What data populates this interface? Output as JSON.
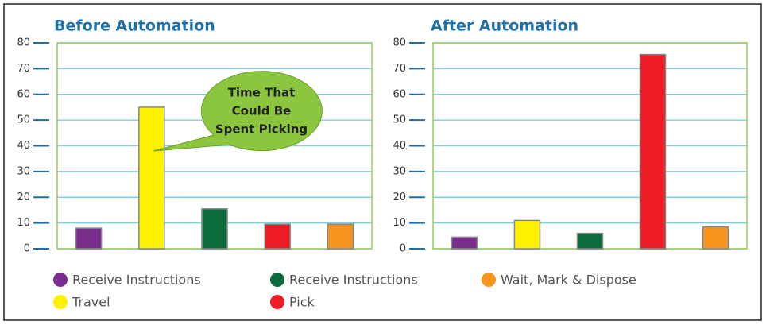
{
  "legend": [
    {
      "name": "Receive Instructions",
      "color": "#7b2d8e"
    },
    {
      "name": "Travel",
      "color": "#fff200"
    },
    {
      "name": "Receive Instructions",
      "color": "#0b6b3a"
    },
    {
      "name": "Pick",
      "color": "#ed1c24"
    },
    {
      "name": "Wait, Mark & Dispose",
      "color": "#f7941d"
    }
  ],
  "chart_data": [
    {
      "type": "bar",
      "title": "Before Automation",
      "values": [
        8,
        55,
        15.5,
        9.5,
        9.5
      ],
      "ylim": [
        0,
        80
      ],
      "yticks": [
        0,
        10,
        20,
        30,
        40,
        50,
        60,
        70,
        80
      ],
      "grid": true,
      "annotation": [
        "Time That",
        "Could Be",
        "Spent Picking"
      ]
    },
    {
      "type": "bar",
      "title": "After Automation",
      "values": [
        4.5,
        11,
        6,
        75.5,
        8.5
      ],
      "ylim": [
        0,
        80
      ],
      "yticks": [
        0,
        10,
        20,
        30,
        40,
        50,
        60,
        70,
        80
      ],
      "grid": true
    }
  ]
}
